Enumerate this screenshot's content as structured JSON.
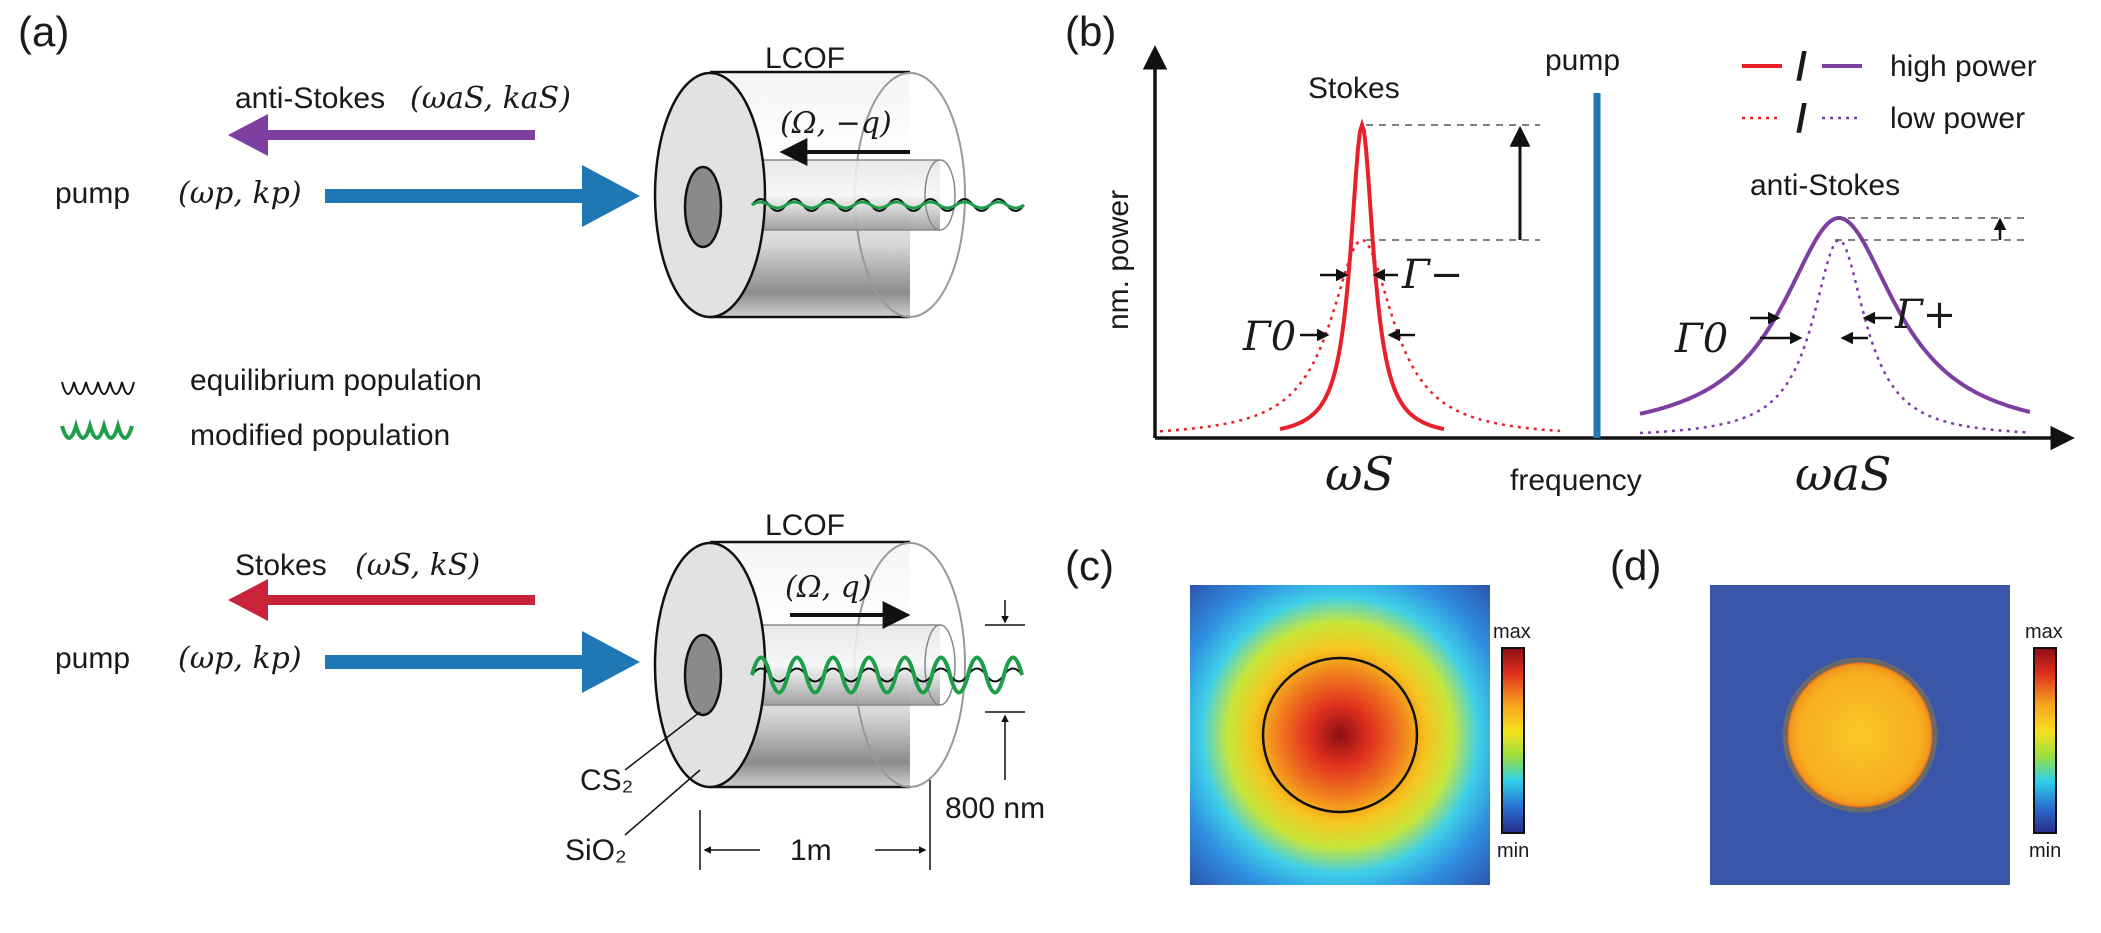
{
  "panel_a": {
    "label": "(a)",
    "top": {
      "lcof": "LCOF",
      "probe_name": "anti-Stokes",
      "probe_math": "(ωaS, kaS)",
      "pump_name": "pump",
      "pump_math": "(ωp, kp)",
      "phonon": "(Ω, −q)"
    },
    "legend": {
      "equilibrium": "equilibrium population",
      "modified": "modified population"
    },
    "bottom": {
      "lcof": "LCOF",
      "probe_name": "Stokes",
      "probe_math": "(ωS, kS)",
      "pump_name": "pump",
      "pump_math": "(ωp, kp)",
      "phonon": "(Ω, q)",
      "core_material": "CS₂",
      "cladding_material": "SiO₂",
      "length": "1m",
      "diameter": "800 nm"
    },
    "colors": {
      "pump": "#1f77b4",
      "anti_stokes": "#7d3fa0",
      "stokes": "#c9233b",
      "modified": "#1e9e4a"
    }
  },
  "panel_b": {
    "label": "(b)",
    "ylabel": "nm. power",
    "xlabel": "frequency",
    "stokes_label": "Stokes",
    "anti_stokes_label": "anti-Stokes",
    "pump_label": "pump",
    "omega_s": "ωS",
    "omega_as": "ωaS",
    "gamma_minus": "Γ−",
    "gamma_plus": "Γ+",
    "gamma_zero": "Γ0",
    "legend": {
      "high": "high power",
      "low": "low power",
      "slash": "/"
    },
    "colors": {
      "stokes": "#e8202a",
      "anti_stokes": "#7d3fa0",
      "pump": "#1f77b4"
    }
  },
  "panel_c": {
    "label": "(c)",
    "cbar_max": "max",
    "cbar_min": "min"
  },
  "panel_d": {
    "label": "(d)",
    "cbar_max": "max",
    "cbar_min": "min"
  }
}
